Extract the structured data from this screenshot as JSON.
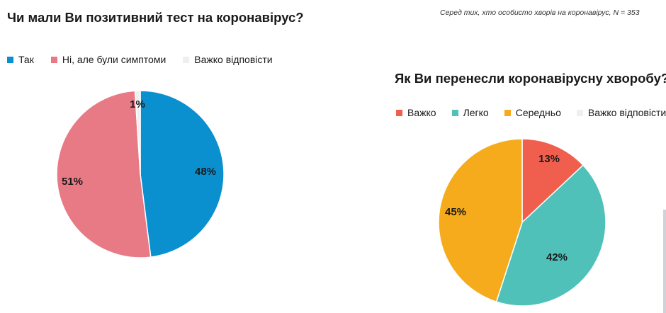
{
  "note": "Серед тих, хто особисто хворів на коронавірус, N = 353",
  "chart_data": [
    {
      "type": "pie",
      "title": "Чи мали Ви позитивний тест на коронавірус?",
      "categories": [
        "Так",
        "Ні, але були симптоми",
        "Важко відповісти"
      ],
      "values": [
        48,
        51,
        1
      ],
      "labels": [
        "48%",
        "51%",
        "1%"
      ],
      "colors": [
        "#0a8fcf",
        "#e87a86",
        "#efefef"
      ],
      "legend_position": "top"
    },
    {
      "type": "pie",
      "title": "Як Ви перенесли коронавірусну хворобу?",
      "categories": [
        "Важко",
        "Легко",
        "Середньо",
        "Важко відповісти"
      ],
      "values": [
        13,
        42,
        45,
        0
      ],
      "labels": [
        "13%",
        "42%",
        "45%",
        ""
      ],
      "colors": [
        "#f05f4e",
        "#4fc1b9",
        "#f5ab1c",
        "#efefef"
      ],
      "legend_position": "top"
    }
  ]
}
